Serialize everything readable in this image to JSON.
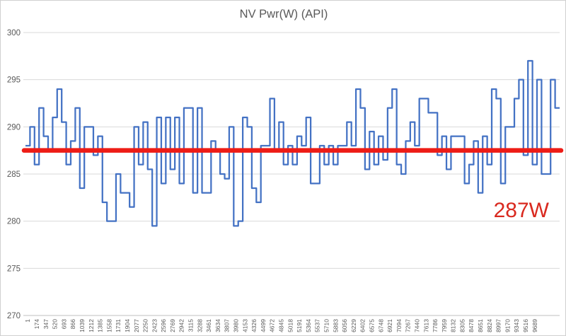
{
  "chart_data": {
    "type": "line",
    "title": "NV Pwr(W) (API)",
    "xlabel": "",
    "ylabel": "",
    "ylim": [
      270,
      300
    ],
    "yticks": [
      270,
      275,
      280,
      285,
      290,
      295,
      300
    ],
    "grid": true,
    "legend": "none",
    "series_name": "NV Pwr(W) (API)",
    "series_color": "#4472c4",
    "x_tick_labels": [
      "1",
      "174",
      "347",
      "520",
      "693",
      "866",
      "1039",
      "1212",
      "1385",
      "1558",
      "1731",
      "1904",
      "2077",
      "2250",
      "2423",
      "2596",
      "2769",
      "2942",
      "3115",
      "3288",
      "3461",
      "3634",
      "3807",
      "3980",
      "4153",
      "4326",
      "4499",
      "4672",
      "4845",
      "5018",
      "5191",
      "5364",
      "5537",
      "5710",
      "5883",
      "6056",
      "6229",
      "6402",
      "6575",
      "6748",
      "6921",
      "7094",
      "7267",
      "7440",
      "7613",
      "7786",
      "7959",
      "8132",
      "8305",
      "8478",
      "8651",
      "8824",
      "8997",
      "9170",
      "9343",
      "9516",
      "9689"
    ],
    "values": [
      288,
      290,
      286,
      292,
      289,
      287.5,
      291,
      294,
      290.5,
      286,
      288.5,
      292,
      283.5,
      290,
      290,
      287,
      289,
      282,
      280,
      280,
      285,
      283,
      283,
      281.5,
      290,
      286,
      290.5,
      285.5,
      279.5,
      291,
      284,
      291,
      285.5,
      291,
      284,
      292,
      292,
      283,
      292,
      283,
      283,
      288.5,
      287.5,
      285,
      284.5,
      290,
      279.5,
      280,
      291,
      290,
      283.5,
      282,
      288,
      288,
      293,
      287.5,
      290.5,
      286,
      288,
      286,
      289,
      288,
      291,
      284,
      284,
      288,
      286,
      288,
      286,
      288,
      288,
      290.5,
      288,
      294,
      292,
      285.5,
      289.5,
      286,
      289,
      286.5,
      292,
      294,
      286,
      285,
      288.5,
      290.5,
      288,
      293,
      293,
      291.5,
      291.5,
      287,
      289,
      285.5,
      289,
      289,
      289,
      284,
      286,
      288.5,
      283,
      289,
      286,
      294,
      293,
      284,
      290,
      290,
      293,
      295,
      287,
      297,
      286,
      295,
      285,
      285,
      295,
      292
    ],
    "reference_line": {
      "value": 287.5,
      "label": "287W",
      "color": "#ed1c16"
    },
    "colors": {
      "grid": "#d9d9d9",
      "axis_line": "#bfbfbf",
      "axis_text": "#595959",
      "title_text": "#595959"
    }
  }
}
